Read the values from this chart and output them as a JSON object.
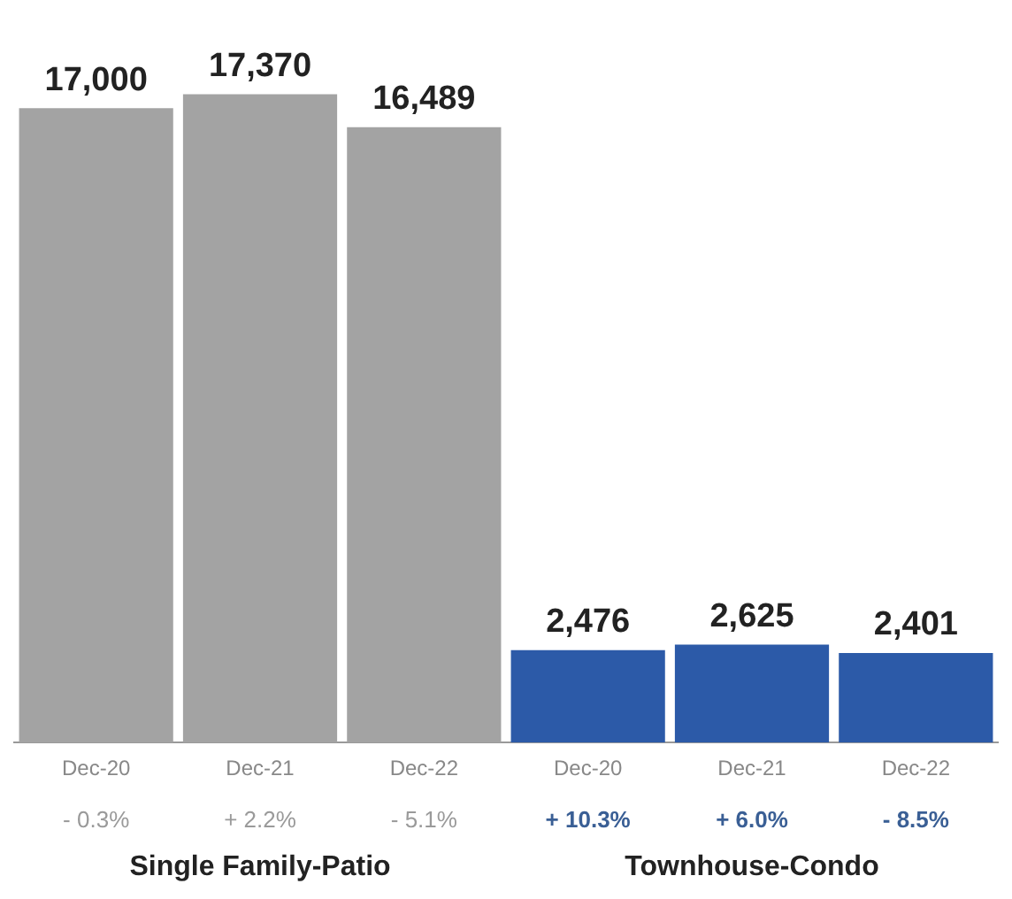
{
  "chart_data": {
    "type": "bar",
    "categories": [
      "Dec-20",
      "Dec-21",
      "Dec-22",
      "Dec-20",
      "Dec-21",
      "Dec-22"
    ],
    "values": [
      17000,
      17370,
      16489,
      2476,
      2625,
      2401
    ],
    "colors": [
      "#a3a3a3",
      "#a3a3a3",
      "#a3a3a3",
      "#2c5aa8",
      "#2c5aa8",
      "#2c5aa8"
    ],
    "value_labels": [
      "17,000",
      "17,370",
      "16,489",
      "2,476",
      "2,625",
      "2,401"
    ],
    "grid": false,
    "legend": false,
    "annotations": [
      "- 0.3%",
      "+ 2.2%",
      "- 5.1%",
      "+ 10.3%",
      "+ 6.0%",
      "- 8.5%",
      "Single Family-Patio",
      "Townhouse-Condo"
    ]
  }
}
